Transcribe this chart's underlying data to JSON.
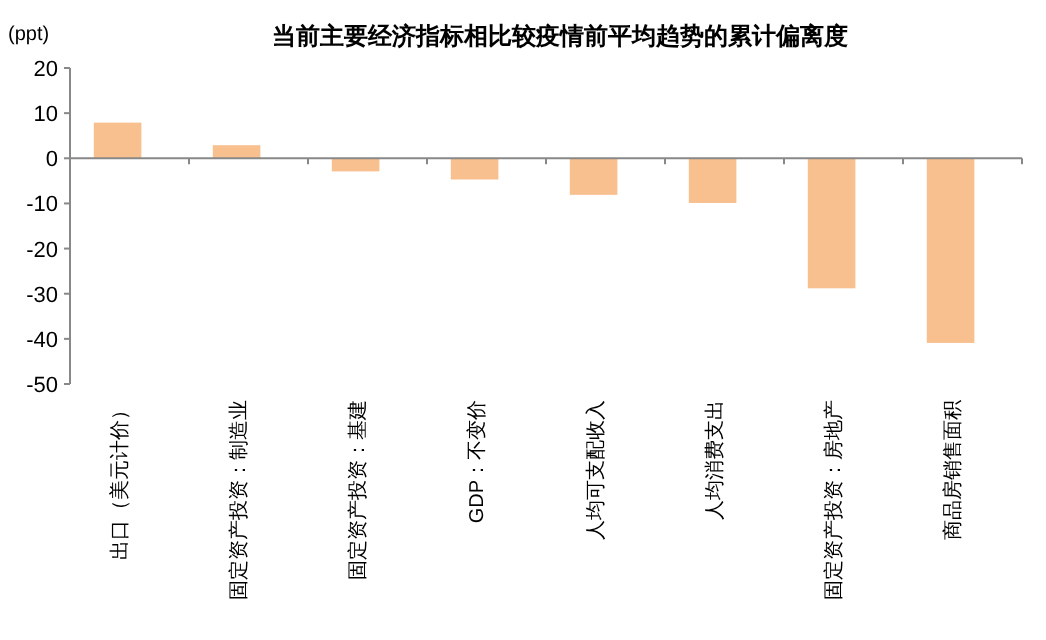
{
  "chart_data": {
    "type": "bar",
    "title": "当前主要经济指标相比较疫情前平均趋势的累计偏离度",
    "ylabel": "(ppt)",
    "categories": [
      "出口（美元计价）",
      "固定资产投资：制造业",
      "固定资产投资：基建",
      "GDP：不变价",
      "人均可支配收入",
      "人均消费支出",
      "固定资产投资：房地产",
      "商品房销售面积"
    ],
    "values": [
      7.9,
      2.9,
      -2.9,
      -4.7,
      -8.1,
      -9.9,
      -28.8,
      -40.9
    ],
    "color": "#f9c08f",
    "ylim": [
      -50,
      20
    ],
    "yticks": [
      -50,
      -40,
      -30,
      -20,
      -10,
      0,
      10,
      20
    ]
  }
}
